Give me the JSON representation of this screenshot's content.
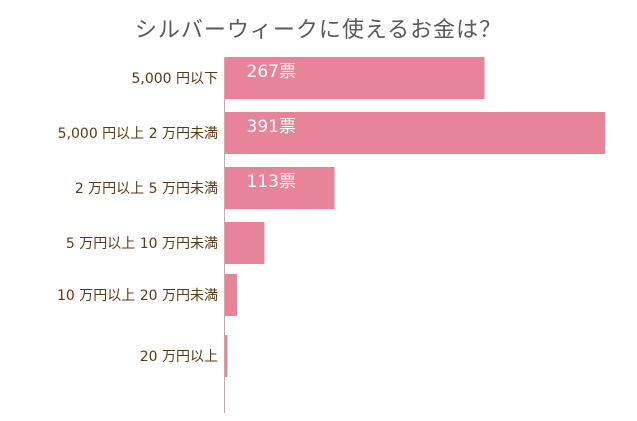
{
  "chart_data": {
    "type": "bar",
    "orientation": "horizontal",
    "title": "シルバーウィークに使えるお金は？",
    "categories": [
      "5,000 円以下",
      "5,000 円以上 2 万円未満",
      "2 万円以上 5 万円未満",
      "5 万円以上 10 万円未満",
      "10 万円以上 20 万円未満",
      "20 万円以上"
    ],
    "values": [
      267,
      391,
      113,
      41,
      13,
      3
    ],
    "data_labels": [
      "267票",
      "391票",
      "113票",
      "",
      "",
      ""
    ],
    "xlim": [
      0,
      400
    ],
    "grid": false,
    "colors": {
      "bar": "#e8849a",
      "label": "#5c3a12",
      "data_label": "#ffffff",
      "title": "#5a5a5a",
      "axis": "#c9a9a9"
    }
  }
}
